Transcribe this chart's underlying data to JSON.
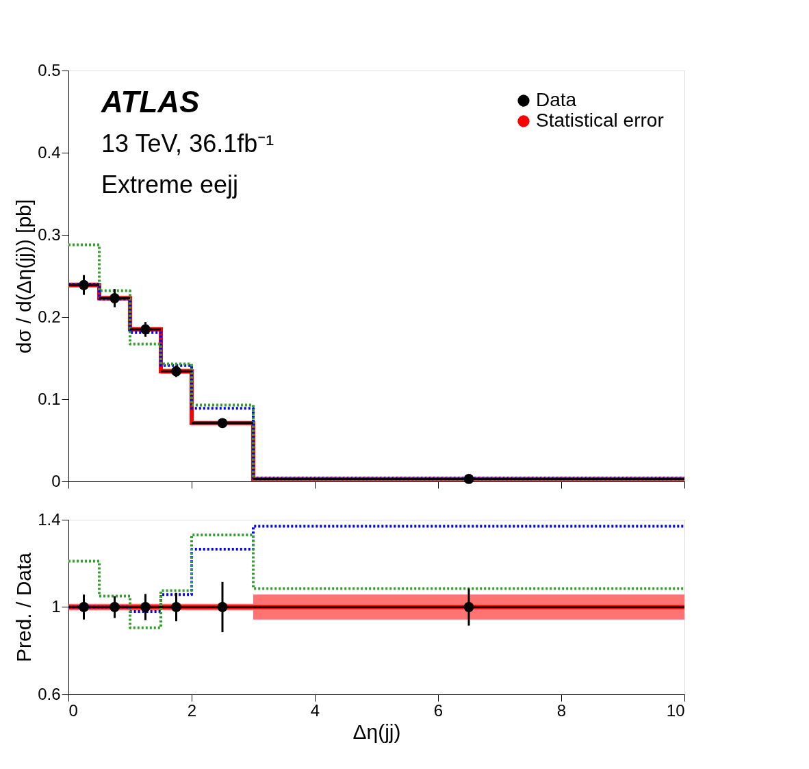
{
  "chart_data": [
    {
      "type": "step",
      "ylabel": "dσ / d(Δη(jj)) [pb]",
      "annotations": [
        "ATLAS",
        "13 TeV, 36.1fb⁻¹",
        "Extreme eejj"
      ],
      "xlim": [
        0,
        10
      ],
      "xticks": [
        0,
        2,
        4,
        6,
        8,
        10
      ],
      "ylim": [
        0,
        0.5
      ],
      "yticks": [
        0,
        0.1,
        0.2,
        0.3,
        0.4,
        0.5
      ],
      "tick_labels": "y",
      "legend": "top right",
      "line_style": "dotted",
      "series": [
        {
          "name": "Data",
          "type": "scatter",
          "color": "#000000",
          "marker": "circle",
          "x": [
            0.25,
            0.75,
            1.25,
            1.75,
            2.5,
            6.5
          ],
          "values": [
            0.239,
            0.223,
            0.185,
            0.134,
            0.071,
            0.003
          ],
          "errors": [
            0.012,
            0.011,
            0.009,
            0.007,
            0.005,
            0.001
          ],
          "xerrors": [
            0.25,
            0.25,
            0.25,
            0.25,
            0.5,
            3.5
          ]
        },
        {
          "name": "Statistical error",
          "type": "step",
          "line_style": "solid",
          "color": "#ff0000",
          "x": [
            0,
            0.5,
            1,
            1.5,
            2,
            3,
            10
          ],
          "values": [
            0.239,
            0.223,
            0.185,
            0.134,
            0.071,
            0.003,
            0.003
          ],
          "lower": [
            0.236,
            0.22,
            0.182,
            0.131,
            0.069,
            0.0025,
            0.0025
          ],
          "upper": [
            0.242,
            0.226,
            0.188,
            0.137,
            0.073,
            0.0035,
            0.0035
          ]
        },
        {
          "color": "#0000ff",
          "x": [
            0,
            0.5,
            1,
            1.5,
            2,
            3,
            10
          ],
          "values": [
            0.24,
            0.222,
            0.181,
            0.141,
            0.089,
            0.004,
            0.004
          ]
        },
        {
          "color": "#33a02c",
          "x": [
            0,
            0.5,
            1,
            1.5,
            2,
            3,
            10
          ],
          "values": [
            0.288,
            0.232,
            0.167,
            0.143,
            0.093,
            0.003,
            0.003
          ]
        }
      ]
    },
    {
      "type": "step",
      "xlabel": "Δη(jj)",
      "ylabel": "Pred. / Data",
      "xlim": [
        0,
        10
      ],
      "xticks": [
        0,
        2,
        4,
        6,
        8,
        10
      ],
      "ylim": [
        0.6,
        1.4
      ],
      "yticks": [
        0.6,
        1,
        1.4
      ],
      "line_style": "dotted",
      "series": [
        {
          "type": "scatter",
          "color": "#000000",
          "marker": "circle",
          "x": [
            0.25,
            0.75,
            1.25,
            1.75,
            2.5,
            6.5
          ],
          "values": [
            1,
            1,
            1,
            1,
            1,
            1
          ],
          "errors": [
            0.057,
            0.05,
            0.06,
            0.065,
            0.115,
            0.085
          ],
          "xerrors": [
            0.25,
            0.25,
            0.25,
            0.25,
            0.5,
            3.5
          ]
        },
        {
          "type": "step",
          "line_style": "solid",
          "color": "#ff0000",
          "x": [
            0,
            0.5,
            1,
            1.5,
            2,
            3,
            10
          ],
          "values": [
            1,
            1,
            1,
            1,
            1,
            1,
            1
          ],
          "lower": [
            0.985,
            0.985,
            0.985,
            0.985,
            0.985,
            0.943,
            0.943
          ],
          "upper": [
            1.015,
            1.015,
            1.015,
            1.015,
            1.015,
            1.057,
            1.057
          ]
        },
        {
          "color": "#0000ff",
          "x": [
            0,
            0.5,
            1,
            1.5,
            2,
            3,
            10
          ],
          "values": [
            1.0,
            1.0,
            0.98,
            1.057,
            1.265,
            1.37,
            1.37
          ]
        },
        {
          "color": "#33a02c",
          "x": [
            0,
            0.5,
            1,
            1.5,
            2,
            3,
            10
          ],
          "values": [
            1.21,
            1.05,
            0.905,
            1.075,
            1.33,
            1.085,
            1.085
          ]
        }
      ]
    }
  ]
}
